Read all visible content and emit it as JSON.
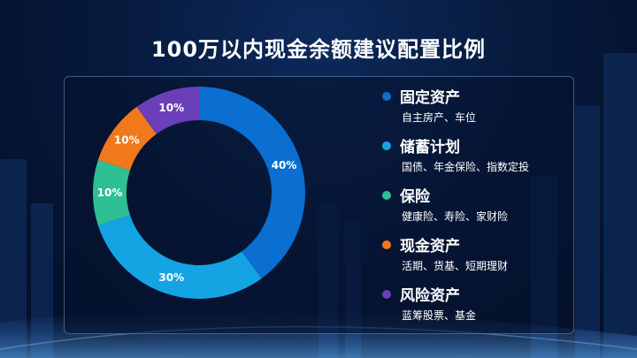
{
  "title": "100万以内现金余额建议配置比例",
  "chart_data": {
    "type": "pie",
    "categories": [
      "固定资产",
      "储蓄计划",
      "保险",
      "现金资产",
      "风险资产"
    ],
    "values": [
      40,
      30,
      10,
      10,
      10
    ],
    "labels": [
      "40%",
      "30%",
      "10%",
      "10%",
      "10%"
    ],
    "descriptions": [
      "自主房产、车位",
      "国债、年金保险、指数定投",
      "健康险、寿险、家财险",
      "活期、货基、短期理财",
      "蓝筹股票、基金"
    ],
    "colors": [
      "#0a6fd0",
      "#14a4e4",
      "#2ebf94",
      "#f2781c",
      "#6a3fb8"
    ],
    "legend_position": "right"
  }
}
